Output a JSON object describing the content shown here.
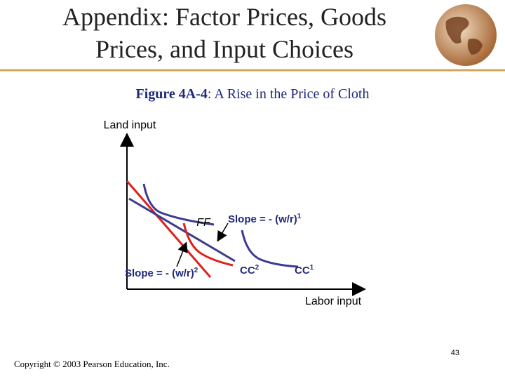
{
  "header": {
    "title_lines": [
      "Appendix: Factor Prices, Goods",
      "Prices, and Input Choices"
    ]
  },
  "figure": {
    "caption_label": "Figure 4A-4",
    "caption_text": ": A Rise in the Price of Cloth",
    "y_axis_label": "Land input",
    "x_axis_label": "Labor input",
    "labels": {
      "ff": {
        "text": "FF"
      },
      "slope1": {
        "text": "Slope = - (w/r)",
        "sup": "1"
      },
      "slope2": {
        "text": "Slope = - (w/r)",
        "sup": "2"
      },
      "cc2": {
        "text": "CC",
        "sup": "2"
      },
      "cc1": {
        "text": "CC",
        "sup": "1"
      }
    }
  },
  "footer": {
    "copyright": "Copyright © 2003 Pearson Education, Inc.",
    "page": "43"
  }
}
